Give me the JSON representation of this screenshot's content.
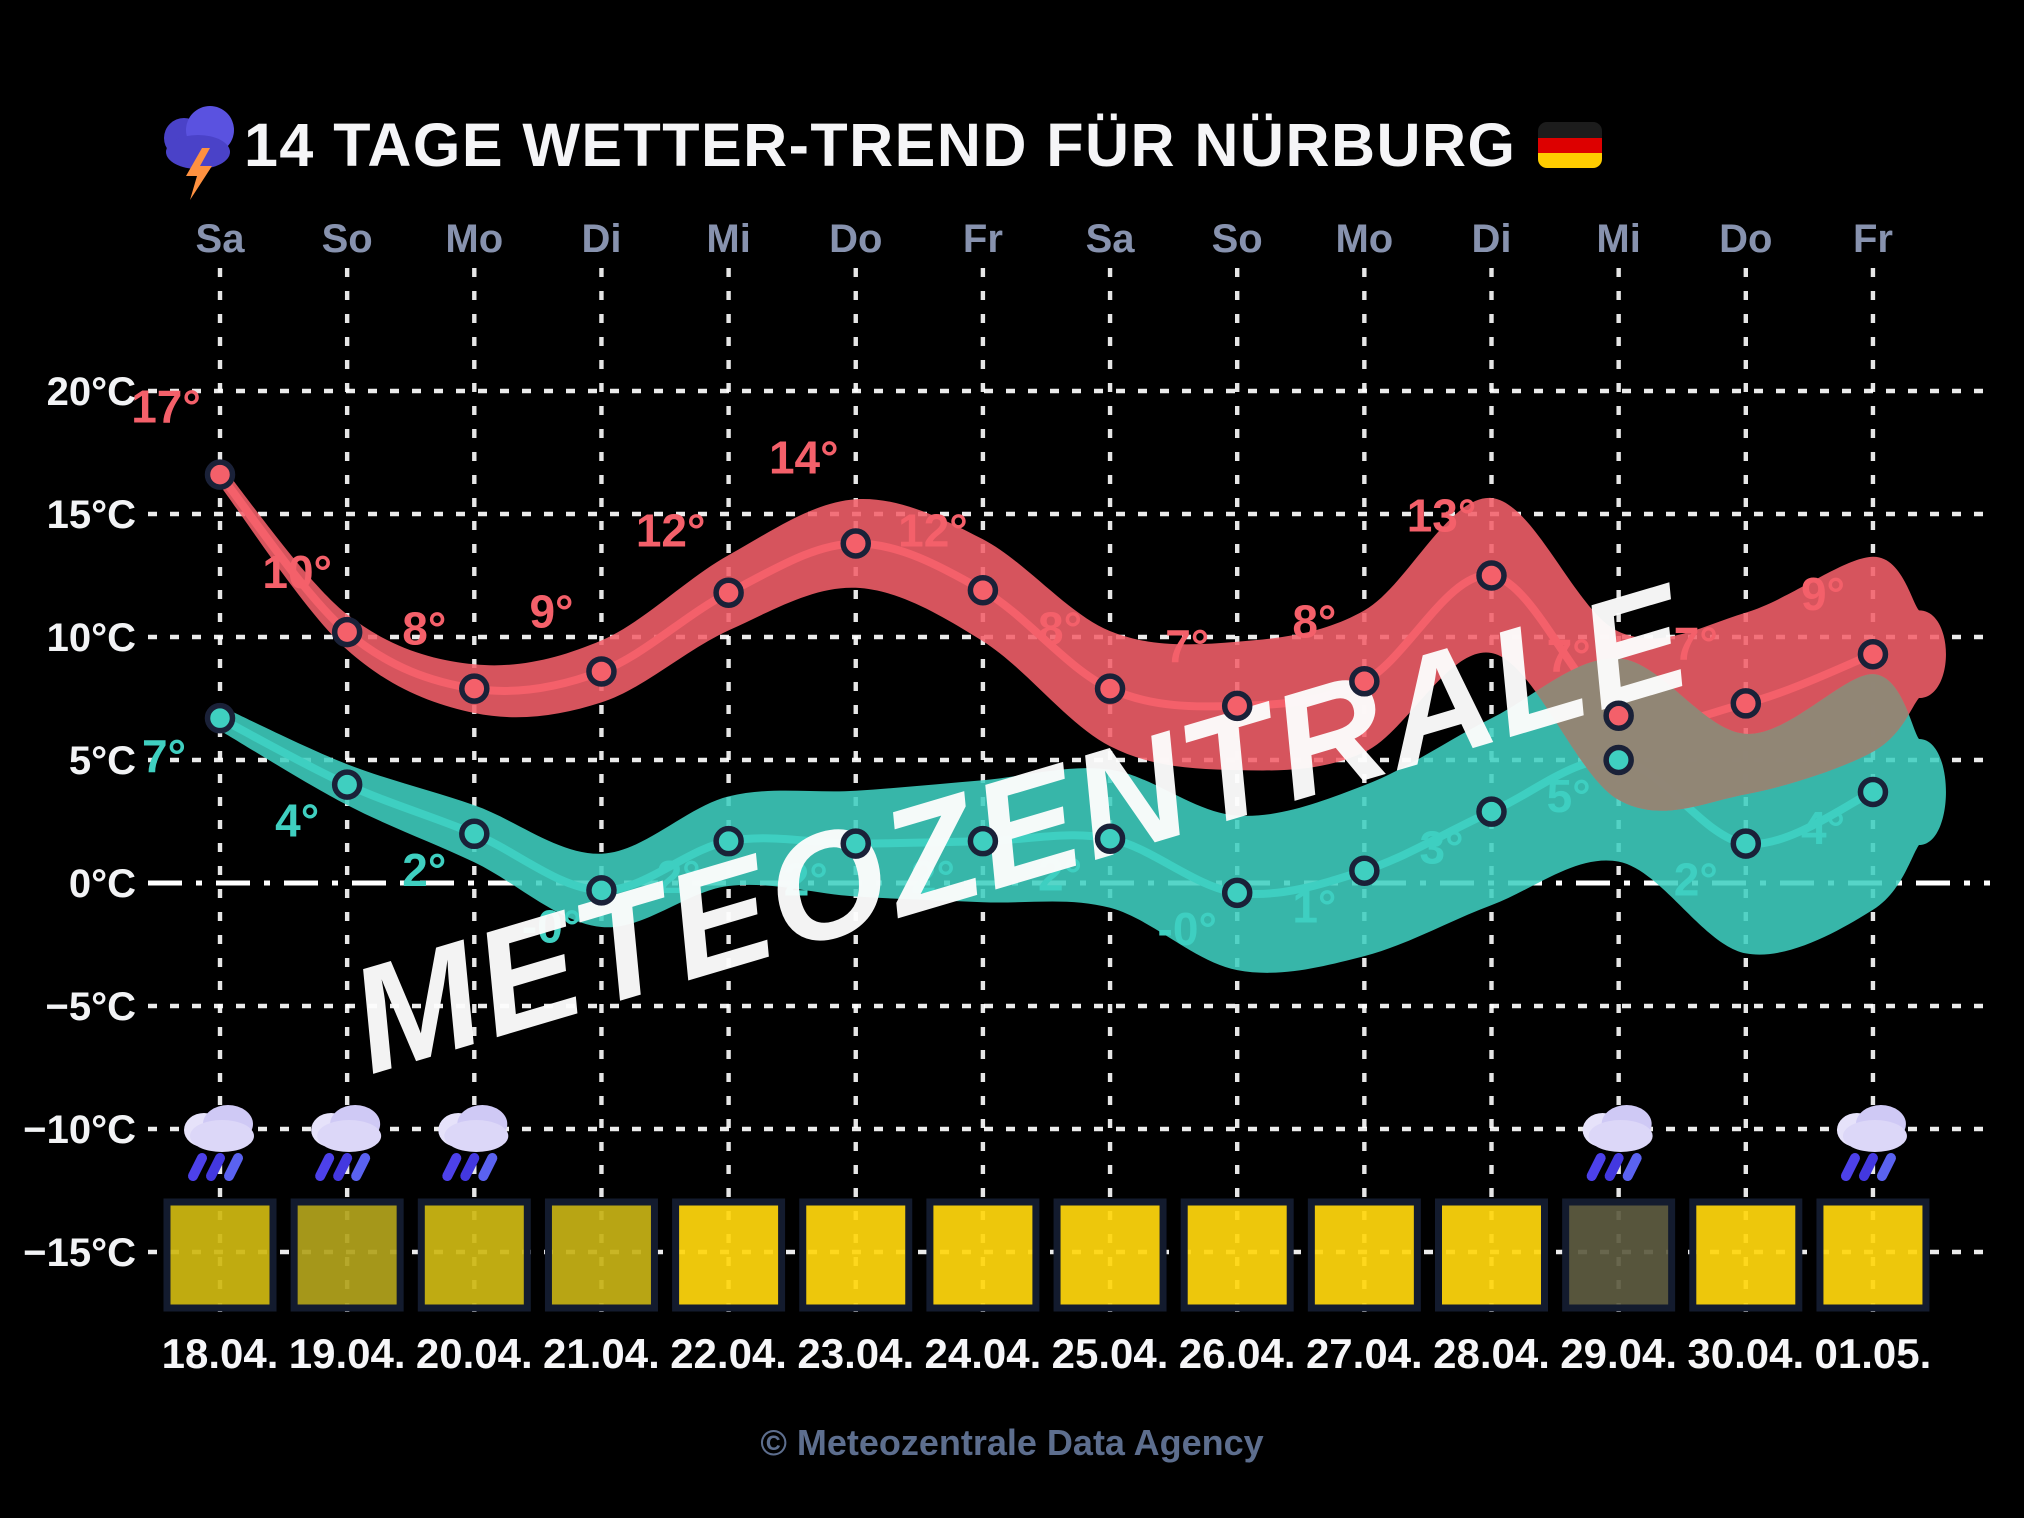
{
  "header": {
    "title": "14 TAGE WETTER-TREND FÜR NÜRBURG",
    "title_icon": "thundercloud-icon",
    "flag_icon": "german-flag-icon"
  },
  "watermark": {
    "text": "METEOZENTRALE"
  },
  "footer": {
    "credit": "© Meteozentrale Data Agency"
  },
  "axis": {
    "y_labels": [
      "20°C",
      "15°C",
      "10°C",
      "5°C",
      "0°C",
      "−5°C",
      "−10°C",
      "−15°C"
    ],
    "y_values": [
      20,
      15,
      10,
      5,
      0,
      -5,
      -10,
      -15
    ]
  },
  "chart_data": {
    "type": "area",
    "title": "14 Tage Wetter-Trend für Nürburg",
    "x": [
      "18.04.",
      "19.04.",
      "20.04.",
      "21.04.",
      "22.04.",
      "23.04.",
      "24.04.",
      "25.04.",
      "26.04.",
      "27.04.",
      "28.04.",
      "29.04.",
      "30.04.",
      "01.05."
    ],
    "day_names": [
      "Sa",
      "So",
      "Mo",
      "Di",
      "Mi",
      "Do",
      "Fr",
      "Sa",
      "So",
      "Mo",
      "Di",
      "Mi",
      "Do",
      "Fr"
    ],
    "ylabel": "°C",
    "ylim": [
      -17.5,
      22.5
    ],
    "grid": true,
    "zero_line_emphasized": true,
    "overlap_color": "#8e8776",
    "series": [
      {
        "name": "max-temperature",
        "color": "#f4606a",
        "values": [
          16.6,
          10.2,
          7.9,
          8.6,
          11.8,
          13.8,
          11.9,
          7.9,
          7.2,
          8.2,
          12.5,
          6.8,
          7.3,
          9.3
        ],
        "point_labels": [
          "17°",
          "10°",
          "8°",
          "9°",
          "12°",
          "14°",
          "12°",
          "8°",
          "7°",
          "8°",
          "13°",
          "7°",
          "7°",
          "9°"
        ],
        "labels_visible": [
          true,
          true,
          true,
          true,
          true,
          true,
          false,
          false,
          false,
          false,
          false,
          false,
          false,
          false
        ]
      },
      {
        "name": "min-temperature",
        "color": "#3fcfc0",
        "values": [
          6.7,
          4.0,
          2.0,
          -0.3,
          1.7,
          1.6,
          1.7,
          1.8,
          -0.4,
          0.5,
          2.9,
          5.0,
          1.6,
          3.7
        ],
        "point_labels": [
          "7°",
          "4°",
          "2°",
          "-0°",
          "2°",
          "2°",
          "2°",
          "2°",
          "-0°",
          "1°",
          "3°",
          "5°",
          "2°",
          "4°"
        ],
        "labels_visible": [
          true,
          true,
          true,
          true,
          false,
          false,
          false,
          false,
          false,
          false,
          false,
          false,
          false,
          false
        ]
      }
    ]
  },
  "weather_icons": {
    "rain_day_indices": [
      0,
      1,
      2,
      11,
      13
    ],
    "icon_name": "rain-cloud-icon"
  },
  "sun_boxes": {
    "colors": [
      "#cfb811",
      "#b2a21c",
      "#cdb813",
      "#c6b115",
      "#ffd60d",
      "#ffd60d",
      "#ffd60d",
      "#ffd60d",
      "#ffd60d",
      "#ffd60d",
      "#ffd60d",
      "#5e5b41",
      "#ffd60d",
      "#ffd60d"
    ]
  }
}
